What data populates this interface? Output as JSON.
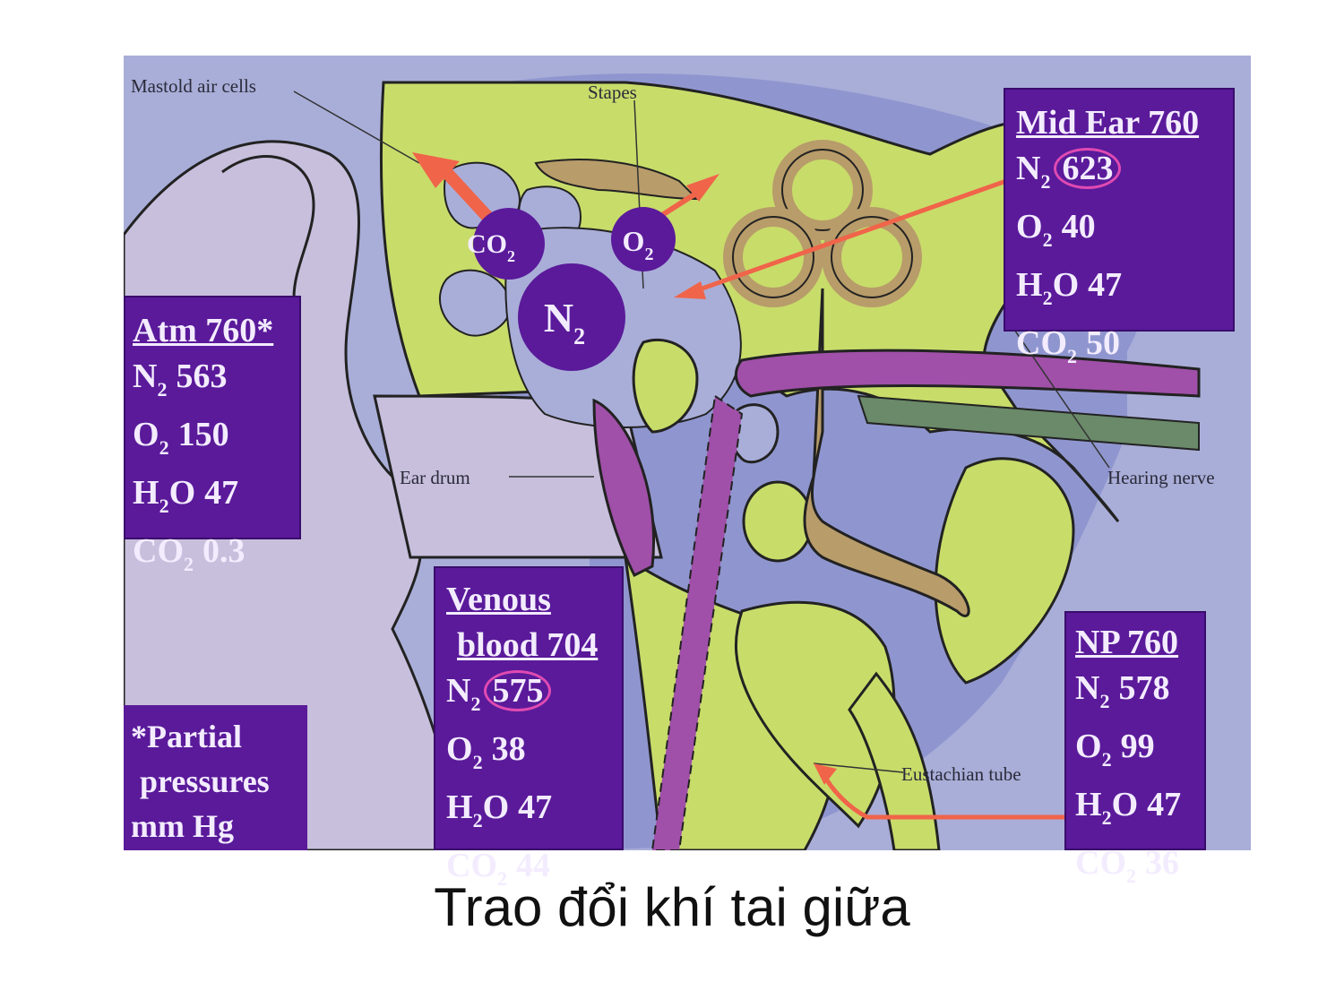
{
  "figure": {
    "labels": {
      "mastoid": "Mastold air cells",
      "stapes": "Stapes",
      "ear_drum": "Ear drum",
      "hearing_nerve": "Hearing nerve",
      "eustachian": "Eustachian tube"
    },
    "bubbles": {
      "co2": {
        "sym": "CO",
        "sub": "2"
      },
      "o2": {
        "sym": "O",
        "sub": "2"
      },
      "n2": {
        "sym": "N",
        "sub": "2"
      }
    },
    "boxes": {
      "atm": {
        "heading": "Atm 760*",
        "rows": [
          {
            "sym": "N",
            "sub": "2",
            "val": "563"
          },
          {
            "sym": "O",
            "sub": "2",
            "val": "150"
          },
          {
            "sym": "H",
            "sub": "2",
            "sym2": "O",
            "val": "47"
          },
          {
            "sym": "CO",
            "sub": "2",
            "val": "0.3"
          }
        ]
      },
      "mid_ear": {
        "heading": "Mid Ear 760",
        "rows": [
          {
            "sym": "N",
            "sub": "2",
            "val": "623"
          },
          {
            "sym": "O",
            "sub": "2",
            "val": "40"
          },
          {
            "sym": "H",
            "sub": "2",
            "sym2": "O",
            "val": "47"
          },
          {
            "sym": "CO",
            "sub": "2",
            "val": "50"
          }
        ]
      },
      "venous": {
        "heading_line1": "Venous",
        "heading_line2": "blood 704",
        "rows": [
          {
            "sym": "N",
            "sub": "2",
            "val": "575"
          },
          {
            "sym": "O",
            "sub": "2",
            "val": "38"
          },
          {
            "sym": "H",
            "sub": "2",
            "sym2": "O",
            "val": "47"
          },
          {
            "sym": "CO",
            "sub": "2",
            "val": "44"
          }
        ]
      },
      "np": {
        "heading": "NP 760",
        "rows": [
          {
            "sym": "N",
            "sub": "2",
            "val": "578"
          },
          {
            "sym": "O",
            "sub": "2",
            "val": "99"
          },
          {
            "sym": "H",
            "sub": "2",
            "sym2": "O",
            "val": "47"
          },
          {
            "sym": "CO",
            "sub": "2",
            "val": "36"
          }
        ]
      }
    },
    "note": {
      "line1": "*Partial",
      "line2": "pressures",
      "line3": "mm Hg"
    }
  },
  "caption": "Trao đổi khí tai giữa",
  "colors": {
    "background": "#aab0d8",
    "bone": "#c8dc6a",
    "outer_ear": "#c8bedc",
    "purple_box": "#5a1a9a",
    "arrow": "#f0644a",
    "highlight_circle": "#e04ab2"
  }
}
